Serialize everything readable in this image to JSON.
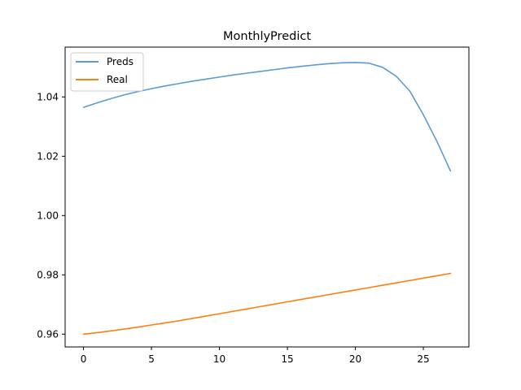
{
  "chart_data": {
    "type": "line",
    "title": "MonthlyPredict",
    "xlabel": "",
    "ylabel": "",
    "xlim": [
      -1.35,
      28.35
    ],
    "ylim": [
      0.9557,
      1.0568
    ],
    "xticks": [
      0,
      5,
      10,
      15,
      20,
      25
    ],
    "xtick_labels": [
      "0",
      "5",
      "10",
      "15",
      "20",
      "25"
    ],
    "yticks": [
      0.96,
      0.98,
      1.0,
      1.02,
      1.04
    ],
    "ytick_labels": [
      "0.96",
      "0.98",
      "1.00",
      "1.02",
      "1.04"
    ],
    "grid": false,
    "legend_position": "top-left",
    "x": [
      0,
      1,
      2,
      3,
      4,
      5,
      6,
      7,
      8,
      9,
      10,
      11,
      12,
      13,
      14,
      15,
      16,
      17,
      18,
      19,
      20,
      21,
      22,
      23,
      24,
      25,
      26,
      27
    ],
    "series": [
      {
        "name": "Preds",
        "color": "#5a9bd4",
        "values": [
          1.0365,
          1.038,
          1.0394,
          1.0407,
          1.0418,
          1.0428,
          1.0437,
          1.0445,
          1.0453,
          1.046,
          1.0467,
          1.0474,
          1.048,
          1.0486,
          1.0492,
          1.0498,
          1.0503,
          1.0508,
          1.0512,
          1.0515,
          1.0516,
          1.0514,
          1.05,
          1.047,
          1.042,
          1.034,
          1.025,
          1.015
        ]
      },
      {
        "name": "Real",
        "color": "#ff7f0e",
        "values": [
          0.96,
          0.9605,
          0.9611,
          0.9617,
          0.9624,
          0.9631,
          0.9638,
          0.9645,
          0.9653,
          0.9661,
          0.9669,
          0.9677,
          0.9685,
          0.9693,
          0.9701,
          0.9709,
          0.9717,
          0.9725,
          0.9733,
          0.9741,
          0.9749,
          0.9757,
          0.9765,
          0.9773,
          0.9781,
          0.9789,
          0.9797,
          0.9805
        ]
      }
    ]
  }
}
